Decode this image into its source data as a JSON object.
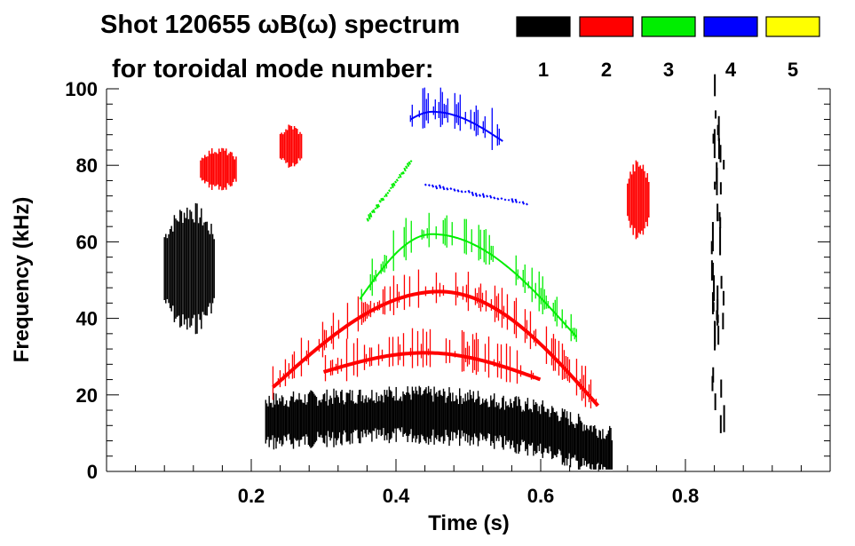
{
  "chart_data": {
    "type": "heatmap",
    "title_line1": "Shot 120655 ωB(ω) spectrum",
    "title_line2": "for toroidal mode number:",
    "xlabel": "Time (s)",
    "ylabel": "Frequency (kHz)",
    "xlim": [
      0.0,
      1.0
    ],
    "ylim": [
      0,
      100
    ],
    "xticks": [
      0.2,
      0.4,
      0.6,
      0.8
    ],
    "xtick_labels": [
      "0.2",
      "0.4",
      "0.6",
      "0.8"
    ],
    "yticks": [
      0,
      20,
      40,
      60,
      80,
      100
    ],
    "ytick_labels": [
      "0",
      "20",
      "40",
      "60",
      "80",
      "100"
    ],
    "legend": [
      {
        "mode": "1",
        "color": "#000000"
      },
      {
        "mode": "2",
        "color": "#ff0000"
      },
      {
        "mode": "3",
        "color": "#00ee00"
      },
      {
        "mode": "4",
        "color": "#0000ff"
      },
      {
        "mode": "5",
        "color": "#ffff00"
      }
    ],
    "features": [
      {
        "mode": 1,
        "shape": "blob",
        "t": [
          0.08,
          0.15
        ],
        "f": [
          38,
          68
        ]
      },
      {
        "mode": 1,
        "shape": "band",
        "t": [
          0.22,
          0.7
        ],
        "f_center": [
          13,
          14,
          15,
          14,
          11,
          4
        ]
      },
      {
        "mode": 1,
        "shape": "column",
        "t": 0.845,
        "f": [
          10,
          100
        ]
      },
      {
        "mode": 2,
        "shape": "arc",
        "t": [
          0.23,
          0.68
        ],
        "f_start": 22,
        "f_peak": 47,
        "t_peak": 0.46,
        "f_end": 17
      },
      {
        "mode": 2,
        "shape": "arc",
        "t": [
          0.3,
          0.6
        ],
        "f_start": 26,
        "f_peak": 31,
        "t_peak": 0.44,
        "f_end": 24
      },
      {
        "mode": 2,
        "shape": "blob",
        "t": [
          0.13,
          0.18
        ],
        "f": [
          74,
          84
        ]
      },
      {
        "mode": 2,
        "shape": "blob",
        "t": [
          0.24,
          0.27
        ],
        "f": [
          80,
          90
        ]
      },
      {
        "mode": 2,
        "shape": "blob",
        "t": [
          0.72,
          0.75
        ],
        "f": [
          62,
          80
        ]
      },
      {
        "mode": 3,
        "shape": "arc",
        "t": [
          0.35,
          0.65
        ],
        "f_start": 45,
        "f_peak": 62,
        "t_peak": 0.45,
        "f_end": 35
      },
      {
        "mode": 3,
        "shape": "streak",
        "t": [
          0.36,
          0.42
        ],
        "f": [
          66,
          81
        ]
      },
      {
        "mode": 4,
        "shape": "arc",
        "t": [
          0.42,
          0.55
        ],
        "f_start": 92,
        "f_peak": 94,
        "t_peak": 0.45,
        "f_end": 86
      },
      {
        "mode": 4,
        "shape": "streak",
        "t": [
          0.44,
          0.58
        ],
        "f": [
          75,
          70
        ]
      }
    ]
  }
}
